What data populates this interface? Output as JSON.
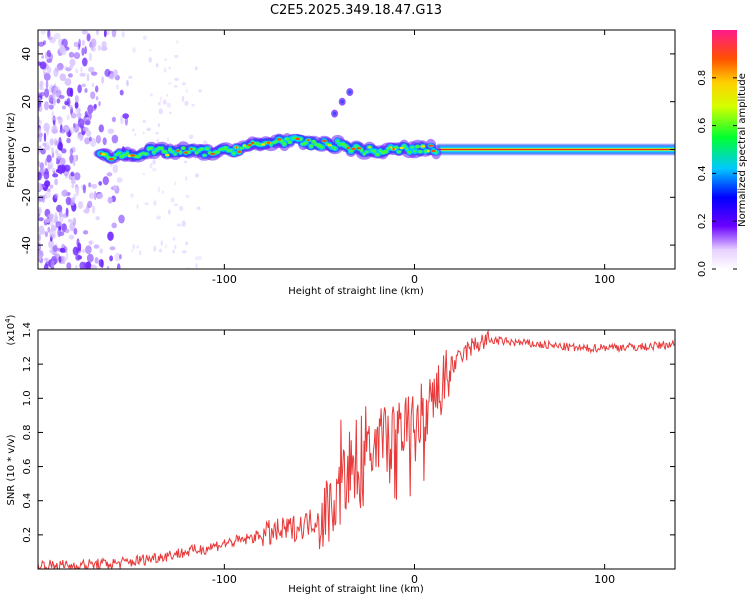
{
  "page_title": "C2E5.2025.349.18.47.G13",
  "chart_data": [
    {
      "type": "heatmap",
      "title": "C2E5.2025.349.18.47.G13",
      "xlabel": "Height of straight line (km)",
      "ylabel": "Frequency (Hz)",
      "xlim": [
        -198,
        137
      ],
      "ylim": [
        -50,
        50
      ],
      "xticks": [
        -100,
        0,
        100
      ],
      "yticks": [
        -40,
        -20,
        0,
        20,
        40
      ],
      "colorbar": {
        "label": "Normalized spectral amplitude",
        "ticks": [
          "0.0",
          "0.2",
          "0.4",
          "0.6",
          "0.8"
        ],
        "range": [
          0,
          1
        ]
      },
      "ridge": [
        {
          "x": -165,
          "y": -3
        },
        {
          "x": -150,
          "y": -2
        },
        {
          "x": -140,
          "y": -1
        },
        {
          "x": -120,
          "y": -1
        },
        {
          "x": -100,
          "y": -1
        },
        {
          "x": -90,
          "y": 1
        },
        {
          "x": -80,
          "y": 2
        },
        {
          "x": -70,
          "y": 4
        },
        {
          "x": -60,
          "y": 3
        },
        {
          "x": -50,
          "y": 2
        },
        {
          "x": -40,
          "y": 2
        },
        {
          "x": -30,
          "y": 0
        },
        {
          "x": -20,
          "y": -1
        },
        {
          "x": -10,
          "y": 0
        },
        {
          "x": 0,
          "y": 0
        },
        {
          "x": 10,
          "y": 0
        },
        {
          "x": 20,
          "y": 0
        },
        {
          "x": 137,
          "y": 0
        }
      ],
      "branch": [
        {
          "x": -42,
          "y": 15
        },
        {
          "x": -38,
          "y": 20
        },
        {
          "x": -34,
          "y": 24
        }
      ]
    },
    {
      "type": "line",
      "xlabel": "Height of straight line (km)",
      "ylabel": "SNR (10 * v/v)",
      "y_multiplier": "(x10",
      "y_multiplier_exp": "4",
      "y_multiplier_close": ")",
      "xlim": [
        -198,
        137
      ],
      "ylim": [
        0,
        1.4
      ],
      "xticks": [
        -100,
        0,
        100
      ],
      "yticks": [
        0.2,
        0.4,
        0.6,
        0.8,
        1.0,
        1.2,
        1.4
      ],
      "color": "#e83a3a",
      "series": [
        {
          "name": "SNR",
          "x": [
            -198,
            -180,
            -160,
            -150,
            -140,
            -130,
            -120,
            -110,
            -100,
            -90,
            -80,
            -70,
            -60,
            -50,
            -45,
            -40,
            -35,
            -30,
            -25,
            -20,
            -15,
            -10,
            -5,
            0,
            5,
            10,
            15,
            20,
            25,
            30,
            35,
            40,
            50,
            60,
            70,
            80,
            90,
            100,
            110,
            120,
            130,
            137
          ],
          "values": [
            0.02,
            0.02,
            0.03,
            0.04,
            0.06,
            0.08,
            0.1,
            0.12,
            0.15,
            0.17,
            0.2,
            0.22,
            0.25,
            0.3,
            0.36,
            0.45,
            0.55,
            0.52,
            0.6,
            0.7,
            0.75,
            0.8,
            0.85,
            0.88,
            0.92,
            0.98,
            1.08,
            1.18,
            1.25,
            1.3,
            1.33,
            1.34,
            1.33,
            1.32,
            1.31,
            1.3,
            1.29,
            1.3,
            1.3,
            1.3,
            1.31,
            1.32
          ]
        }
      ]
    }
  ]
}
